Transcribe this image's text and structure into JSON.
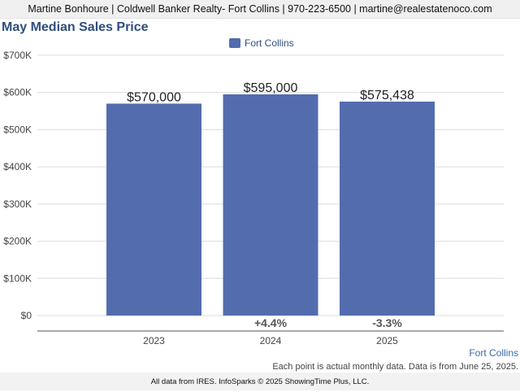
{
  "header": {
    "contact": "Martine Bonhoure | Coldwell Banker Realty- Fort Collins | 970-223-6500 | martine@realestatenoco.com"
  },
  "chart_data": {
    "type": "bar",
    "title": "May Median Sales Price",
    "categories": [
      "2023",
      "2024",
      "2025"
    ],
    "series": [
      {
        "name": "Fort Collins",
        "values": [
          570000,
          595000,
          575438
        ],
        "value_labels": [
          "$570,000",
          "$595,000",
          "$575,438"
        ],
        "color": "#536cae"
      }
    ],
    "change_labels": [
      "",
      "+4.4%",
      "-3.3%"
    ],
    "ylim": [
      0,
      700000
    ],
    "yticks": [
      0,
      100000,
      200000,
      300000,
      400000,
      500000,
      600000,
      700000
    ],
    "ytick_labels": [
      "$0",
      "$100K",
      "$200K",
      "$300K",
      "$400K",
      "$500K",
      "$600K",
      "$700K"
    ],
    "grid": true,
    "legend_position": "top-center",
    "xlabel": "",
    "ylabel": ""
  },
  "footer": {
    "region_label": "Fort Collins",
    "note": "Each point is actual monthly data. Data is from June 25, 2025.",
    "credit": "All data from IRES. InfoSparks © 2025 ShowingTime Plus, LLC."
  }
}
